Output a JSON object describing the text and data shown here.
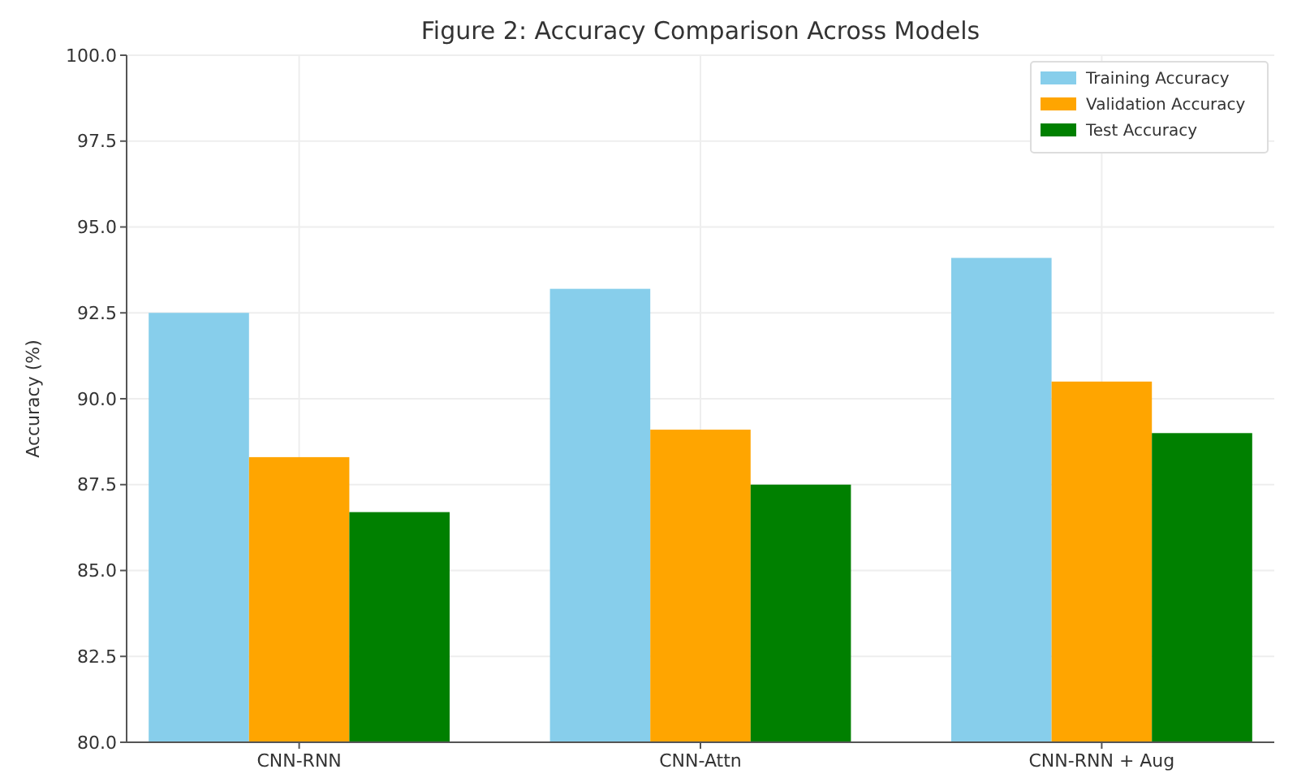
{
  "chart_data": {
    "type": "bar",
    "title": "Figure 2: Accuracy Comparison Across Models",
    "ylabel": "Accuracy (%)",
    "categories": [
      "CNN-RNN",
      "CNN-Attn",
      "CNN-RNN + Aug"
    ],
    "series": [
      {
        "name": "Training Accuracy",
        "color": "#87ceeb",
        "values": [
          92.5,
          93.2,
          94.1
        ]
      },
      {
        "name": "Validation Accuracy",
        "color": "#ffa500",
        "values": [
          88.3,
          89.1,
          90.5
        ]
      },
      {
        "name": "Test Accuracy",
        "color": "#008000",
        "values": [
          86.7,
          87.5,
          89.0
        ]
      }
    ],
    "ylim": [
      80,
      100
    ],
    "yticks": [
      {
        "value": 80,
        "label": "80.0"
      },
      {
        "value": 82.5,
        "label": "82.5"
      },
      {
        "value": 85,
        "label": "85.0"
      },
      {
        "value": 87.5,
        "label": "87.5"
      },
      {
        "value": 90,
        "label": "90.0"
      },
      {
        "value": 92.5,
        "label": "92.5"
      },
      {
        "value": 95,
        "label": "95.0"
      },
      {
        "value": 97.5,
        "label": "97.5"
      },
      {
        "value": 100,
        "label": "100.0"
      }
    ],
    "grid": true,
    "legend": "top right"
  }
}
